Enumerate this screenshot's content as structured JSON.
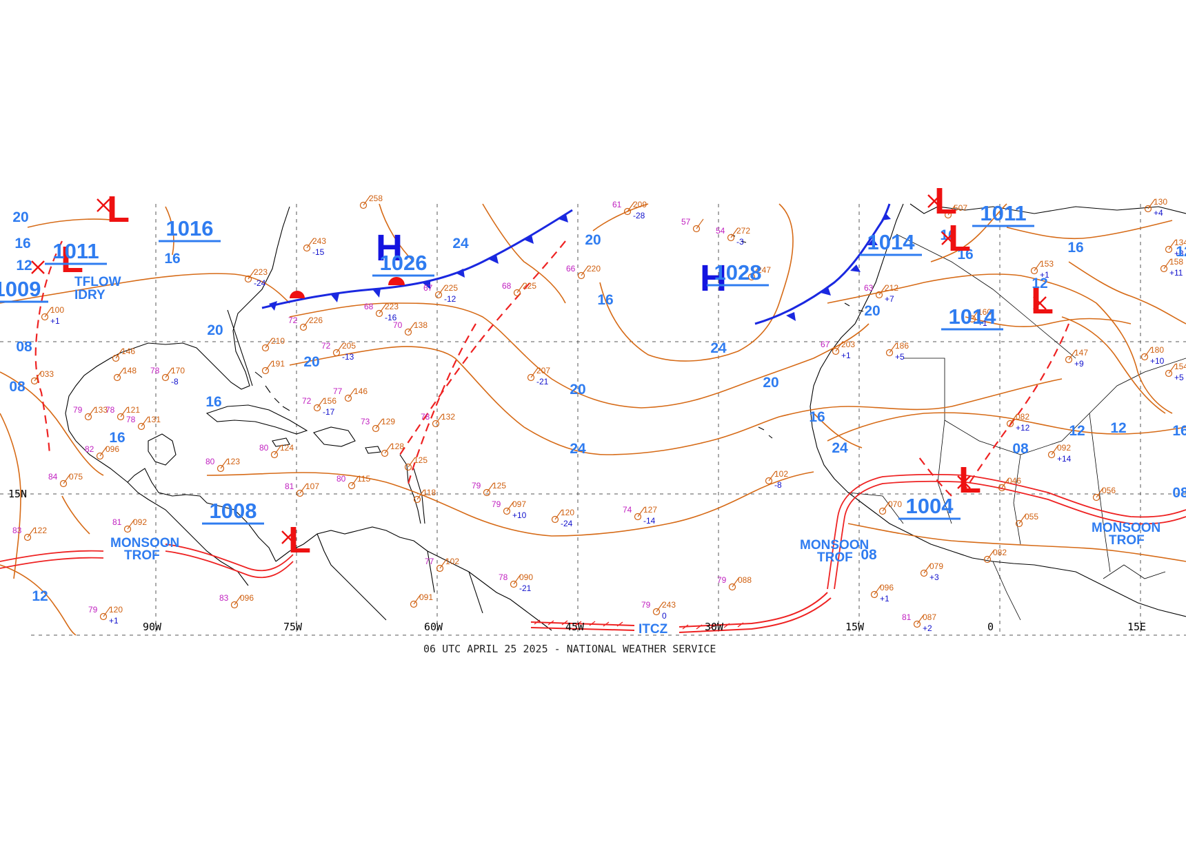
{
  "footer": "06 UTC APRIL 25 2025 - NATIONAL WEATHER SERVICE",
  "colors": {
    "isobar": "#d66a16",
    "high_low_blue": "#2f7cf0",
    "high_letter": "#1414e0",
    "low_letter": "#ee1111",
    "cold_front": "#1a28e0",
    "warm_front": "#ee1111",
    "trough": "#ee2222",
    "itcz": "#ee2222",
    "coastline": "#000000",
    "grid": "#444444",
    "station_temp": "#c020c0",
    "station_dew": "#0a9a8a",
    "station_pressure": "#d06010",
    "station_tendency": "#1010cc"
  },
  "longitude_labels": [
    "90W",
    "75W",
    "60W",
    "45W",
    "30W",
    "15W",
    "0",
    "15E"
  ],
  "latitude_labels": [
    "15N"
  ],
  "pressure_centers": [
    {
      "type": "H",
      "value": "1026"
    },
    {
      "type": "H",
      "value": "1028"
    },
    {
      "type": "L",
      "value": "1016"
    },
    {
      "type": "L",
      "value": "1011"
    },
    {
      "type": "L",
      "value": "1009"
    },
    {
      "type": "L",
      "value": "1008"
    },
    {
      "type": "L",
      "value": "1014"
    },
    {
      "type": "L",
      "value": "1011"
    },
    {
      "type": "L",
      "value": "1014"
    },
    {
      "type": "L",
      "value": "1004"
    }
  ],
  "isobar_labels": [
    "20",
    "16",
    "12",
    "08",
    "24",
    "20",
    "16",
    "24",
    "20",
    "24",
    "20",
    "16",
    "24",
    "20",
    "16",
    "12",
    "08",
    "20",
    "16",
    "16",
    "08",
    "12",
    "12",
    "16",
    "16",
    "08",
    "16",
    "12",
    "08",
    "20",
    "12",
    "16"
  ],
  "features": {
    "monsoon_trof_west": [
      "MONSOON",
      "TROF"
    ],
    "monsoon_trof_east": [
      "MONSOON",
      "TROF"
    ],
    "monsoon_trof_africa": [
      "MONSOON",
      "TROF"
    ],
    "itcz": "ITCZ",
    "outflow_boundary": [
      "TFLOW",
      "IDRY"
    ]
  },
  "stations": [
    {
      "t": "57",
      "d": "",
      "p": "",
      "tend": ""
    },
    {
      "t": "54",
      "d": "",
      "p": "272",
      "tend": "-3"
    },
    {
      "t": "61",
      "d": "",
      "p": "209",
      "tend": "-28"
    },
    {
      "t": "66",
      "d": "",
      "p": "220",
      "tend": ""
    },
    {
      "t": "68",
      "d": "",
      "p": "225",
      "tend": ""
    },
    {
      "t": "67",
      "d": "",
      "p": "225",
      "tend": "-12"
    },
    {
      "t": "68",
      "d": "",
      "p": "223",
      "tend": "-16"
    },
    {
      "t": "72",
      "d": "",
      "p": "226",
      "tend": ""
    },
    {
      "t": "72",
      "d": "",
      "p": "205",
      "tend": "-13"
    },
    {
      "t": "70",
      "d": "",
      "p": "138",
      "tend": ""
    },
    {
      "t": "",
      "d": "",
      "p": "207",
      "tend": "-21"
    },
    {
      "t": "72",
      "d": "",
      "p": "156",
      "tend": "-17"
    },
    {
      "t": "77",
      "d": "",
      "p": "146",
      "tend": ""
    },
    {
      "t": "78",
      "d": "",
      "p": "132",
      "tend": ""
    },
    {
      "t": "73",
      "d": "",
      "p": "129",
      "tend": ""
    },
    {
      "t": "",
      "d": "",
      "p": "128",
      "tend": ""
    },
    {
      "t": "",
      "d": "",
      "p": "125",
      "tend": ""
    },
    {
      "t": "79",
      "d": "",
      "p": "125",
      "tend": ""
    },
    {
      "t": "79",
      "d": "",
      "p": "097",
      "tend": "+10"
    },
    {
      "t": "",
      "d": "",
      "p": "120",
      "tend": "-24"
    },
    {
      "t": "74",
      "d": "",
      "p": "127",
      "tend": "-14"
    },
    {
      "t": "80",
      "d": "",
      "p": "115",
      "tend": ""
    },
    {
      "t": "81",
      "d": "",
      "p": "107",
      "tend": ""
    },
    {
      "t": "",
      "d": "",
      "p": "118",
      "tend": ""
    },
    {
      "t": "77",
      "d": "",
      "p": "102",
      "tend": ""
    },
    {
      "t": "",
      "d": "",
      "p": "091",
      "tend": ""
    },
    {
      "t": "78",
      "d": "",
      "p": "090",
      "tend": "-21"
    },
    {
      "t": "79",
      "d": "",
      "p": "243",
      "tend": "0"
    },
    {
      "t": "79",
      "d": "",
      "p": "088",
      "tend": ""
    },
    {
      "t": "81",
      "d": "",
      "p": "092",
      "tend": ""
    },
    {
      "t": "83",
      "d": "",
      "p": "122",
      "tend": ""
    },
    {
      "t": "79",
      "d": "",
      "p": "120",
      "tend": "+1"
    },
    {
      "t": "83",
      "d": "",
      "p": "096",
      "tend": ""
    },
    {
      "t": "79",
      "d": "",
      "p": "133",
      "tend": ""
    },
    {
      "t": "78",
      "d": "",
      "p": "121",
      "tend": ""
    },
    {
      "t": "82",
      "d": "",
      "p": "096",
      "tend": ""
    },
    {
      "t": "80",
      "d": "",
      "p": "123",
      "tend": ""
    },
    {
      "t": "84",
      "d": "",
      "p": "075",
      "tend": ""
    },
    {
      "t": "78",
      "d": "",
      "p": "131",
      "tend": ""
    },
    {
      "t": "80",
      "d": "",
      "p": "124",
      "tend": ""
    },
    {
      "t": "78",
      "d": "",
      "p": "170",
      "tend": "-8"
    },
    {
      "t": "",
      "d": "",
      "p": "148",
      "tend": ""
    },
    {
      "t": "",
      "d": "",
      "p": "146",
      "tend": ""
    },
    {
      "t": "",
      "d": "",
      "p": "033",
      "tend": ""
    },
    {
      "t": "",
      "d": "",
      "p": "100",
      "tend": "+1"
    },
    {
      "t": "",
      "d": "",
      "p": "243",
      "tend": "-15"
    },
    {
      "t": "",
      "d": "",
      "p": "223",
      "tend": "-24"
    },
    {
      "t": "",
      "d": "",
      "p": "210",
      "tend": ""
    },
    {
      "t": "",
      "d": "",
      "p": "191",
      "tend": ""
    },
    {
      "t": "",
      "d": "",
      "p": "258",
      "tend": ""
    },
    {
      "t": "",
      "d": "",
      "p": "247",
      "tend": ""
    },
    {
      "t": "63",
      "d": "",
      "p": "212",
      "tend": "+7"
    },
    {
      "t": "67",
      "d": "",
      "p": "203",
      "tend": "+1"
    },
    {
      "t": "",
      "d": "",
      "p": "186",
      "tend": "+5"
    },
    {
      "t": "",
      "d": "",
      "p": "160",
      "tend": "+1"
    },
    {
      "t": "",
      "d": "",
      "p": "153",
      "tend": "+1"
    },
    {
      "t": "",
      "d": "",
      "p": "158",
      "tend": "+11"
    },
    {
      "t": "",
      "d": "",
      "p": "180",
      "tend": "+10"
    },
    {
      "t": "",
      "d": "",
      "p": "154",
      "tend": "+5"
    },
    {
      "t": "",
      "d": "",
      "p": "147",
      "tend": "+9"
    },
    {
      "t": "",
      "d": "",
      "p": "082",
      "tend": "+12"
    },
    {
      "t": "",
      "d": "",
      "p": "092",
      "tend": "+14"
    },
    {
      "t": "",
      "d": "",
      "p": "102",
      "tend": "-8"
    },
    {
      "t": "",
      "d": "",
      "p": "070",
      "tend": ""
    },
    {
      "t": "",
      "d": "",
      "p": "079",
      "tend": "+3"
    },
    {
      "t": "",
      "d": "",
      "p": "082",
      "tend": ""
    },
    {
      "t": "",
      "d": "",
      "p": "055",
      "tend": ""
    },
    {
      "t": "",
      "d": "",
      "p": "046",
      "tend": ""
    },
    {
      "t": "",
      "d": "",
      "p": "056",
      "tend": ""
    },
    {
      "t": "",
      "d": "",
      "p": "096",
      "tend": "+1"
    },
    {
      "t": "81",
      "d": "",
      "p": "087",
      "tend": "+2"
    },
    {
      "t": "",
      "d": "",
      "p": "130",
      "tend": "+4"
    },
    {
      "t": "",
      "d": "",
      "p": "134",
      "tend": "+3"
    },
    {
      "t": "",
      "d": "",
      "p": "507",
      "tend": ""
    }
  ]
}
